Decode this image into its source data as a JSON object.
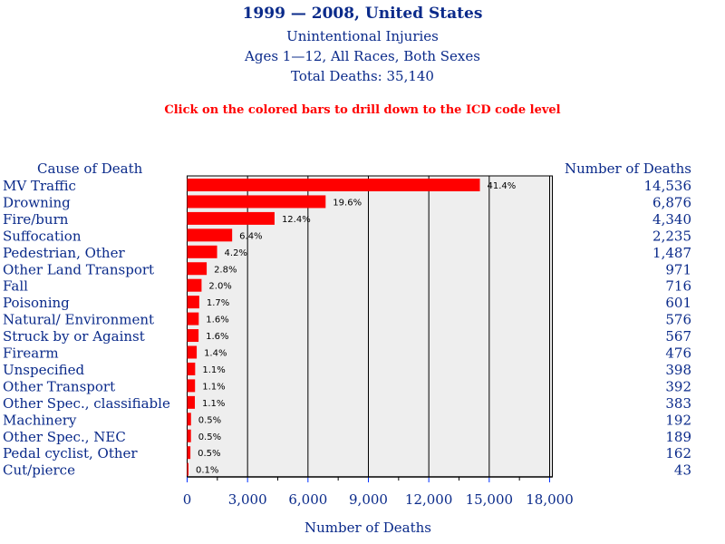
{
  "header": {
    "title": "1999 — 2008, United States",
    "subtitle1": "Unintentional Injuries",
    "subtitle2": "Ages 1—12, All Races, Both Sexes",
    "subtitle3": "Total Deaths: 35,140",
    "note": "Click on the colored bars to drill down to the ICD code level"
  },
  "chart_data": {
    "type": "bar",
    "orientation": "horizontal",
    "left_header": "Cause of Death",
    "right_header": "Number of Deaths",
    "xlabel": "Number of Deaths",
    "xlim": [
      0,
      18000
    ],
    "xticks": [
      0,
      3000,
      6000,
      9000,
      12000,
      15000,
      18000
    ],
    "xtick_labels": [
      "0",
      "3,000",
      "6,000",
      "9,000",
      "12,000",
      "15,000",
      "18,000"
    ],
    "categories": [
      "MV Traffic",
      "Drowning",
      "Fire/burn",
      "Suffocation",
      "Pedestrian, Other",
      "Other Land Transport",
      "Fall",
      "Poisoning",
      "Natural/ Environment",
      "Struck by or Against",
      "Firearm",
      "Unspecified",
      "Other Transport",
      "Other Spec., classifiable",
      "Machinery",
      "Other Spec., NEC",
      "Pedal cyclist, Other",
      "Cut/pierce"
    ],
    "values": [
      14536,
      6876,
      4340,
      2235,
      1487,
      971,
      716,
      601,
      576,
      567,
      476,
      398,
      392,
      383,
      192,
      189,
      162,
      43
    ],
    "value_labels": [
      "14,536",
      "6,876",
      "4,340",
      "2,235",
      "1,487",
      "971",
      "716",
      "601",
      "576",
      "567",
      "476",
      "398",
      "392",
      "383",
      "192",
      "189",
      "162",
      "43"
    ],
    "percent_labels": [
      "41.4%",
      "19.6%",
      "12.4%",
      "6.4%",
      "4.2%",
      "2.8%",
      "2.0%",
      "1.7%",
      "1.6%",
      "1.6%",
      "1.4%",
      "1.1%",
      "1.1%",
      "1.1%",
      "0.5%",
      "0.5%",
      "0.5%",
      "0.1%"
    ],
    "bar_color": "#ff0000",
    "plot_bg": "#eeeeee",
    "grid": true
  }
}
